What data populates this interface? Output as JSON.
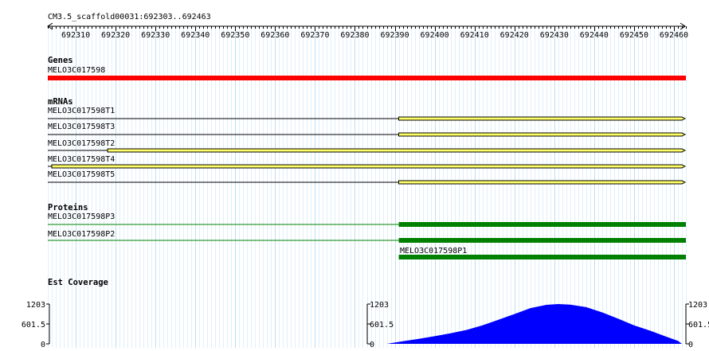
{
  "ruler": {
    "title": "CM3.5_scaffold00031:692303..692463",
    "range": [
      692303,
      692463
    ],
    "ticks": [
      692310,
      692320,
      692330,
      692340,
      692350,
      692360,
      692370,
      692380,
      692390,
      692400,
      692410,
      692420,
      692430,
      692440,
      692450,
      692460
    ]
  },
  "tracks": {
    "genes": {
      "title": "Genes",
      "items": [
        {
          "label": "MELO3C017598",
          "start": 692303,
          "end": 692463,
          "color": "#ff0000"
        }
      ]
    },
    "mrnas": {
      "title": "mRNAs",
      "items": [
        {
          "label": "MELO3C017598T1",
          "line_start": 692303,
          "line_end": 692391,
          "box_start": 692391,
          "box_end": 692463
        },
        {
          "label": "MELO3C017598T3",
          "line_start": 692303,
          "line_end": 692391,
          "box_start": 692391,
          "box_end": 692463
        },
        {
          "label": "MELO3C017598T2",
          "line_start": 692303,
          "line_end": 692318,
          "box_start": 692318,
          "box_end": 692463
        },
        {
          "label": "MELO3C017598T4",
          "line_start": 692303,
          "line_end": 692304,
          "box_start": 692304,
          "box_end": 692463
        },
        {
          "label": "MELO3C017598T5",
          "line_start": 692303,
          "line_end": 692391,
          "box_start": 692391,
          "box_end": 692463
        }
      ],
      "box_color": "#ffff66"
    },
    "proteins": {
      "title": "Proteins",
      "items": [
        {
          "label": "MELO3C017598P3",
          "line_start": 692303,
          "line_end": 692391,
          "box_start": 692391,
          "box_end": 692463
        },
        {
          "label": "MELO3C017598P2",
          "line_start": 692303,
          "line_end": 692391,
          "box_start": 692391,
          "box_end": 692463
        },
        {
          "label": "MELO3C017598P1",
          "box_start": 692391,
          "box_end": 692463
        }
      ],
      "color": "#008000"
    },
    "est_coverage": {
      "title": "Est Coverage",
      "scale_labels": [
        "1203",
        "601.5",
        "0"
      ],
      "max": 1203,
      "color": "#0000ff",
      "points": [
        [
          692388,
          0
        ],
        [
          692392,
          80
        ],
        [
          692396,
          150
        ],
        [
          692400,
          230
        ],
        [
          692404,
          320
        ],
        [
          692408,
          420
        ],
        [
          692412,
          560
        ],
        [
          692416,
          730
        ],
        [
          692420,
          900
        ],
        [
          692424,
          1080
        ],
        [
          692428,
          1180
        ],
        [
          692431,
          1203
        ],
        [
          692434,
          1185
        ],
        [
          692438,
          1110
        ],
        [
          692442,
          950
        ],
        [
          692446,
          760
        ],
        [
          692450,
          560
        ],
        [
          692454,
          400
        ],
        [
          692458,
          220
        ],
        [
          692461,
          90
        ],
        [
          692462,
          0
        ]
      ]
    }
  }
}
